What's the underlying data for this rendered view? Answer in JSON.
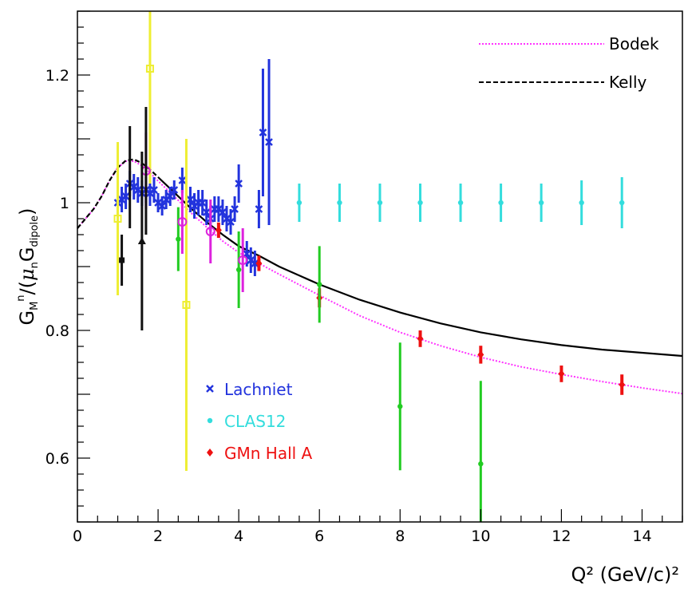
{
  "chart_data": {
    "type": "scatter",
    "title": "",
    "xlabel": "Q² (GeV/c)²",
    "ylabel": "G_M^n/(μ_n G_dipole)",
    "xlim": [
      0,
      15
    ],
    "ylim": [
      0.5,
      1.3
    ],
    "x_ticks": [
      "0",
      "2",
      "4",
      "6",
      "8",
      "10",
      "12",
      "14"
    ],
    "y_ticks": [
      "0.6",
      "0.8",
      "1",
      "1.2"
    ],
    "grid": false,
    "curves": [
      {
        "name": "Bodek",
        "legend_label": "Bodek",
        "color": "#ff33ff",
        "style": "dotted",
        "legend_location": "top-right",
        "points": [
          [
            0.0,
            0.96
          ],
          [
            0.2,
            0.975
          ],
          [
            0.4,
            0.99
          ],
          [
            0.6,
            1.01
          ],
          [
            0.8,
            1.035
          ],
          [
            1.0,
            1.055
          ],
          [
            1.2,
            1.065
          ],
          [
            1.4,
            1.065
          ],
          [
            1.6,
            1.058
          ],
          [
            1.8,
            1.047
          ],
          [
            2.0,
            1.034
          ],
          [
            2.4,
            1.01
          ],
          [
            2.8,
            0.985
          ],
          [
            3.2,
            0.962
          ],
          [
            3.6,
            0.94
          ],
          [
            4.0,
            0.922
          ],
          [
            4.5,
            0.905
          ],
          [
            5.0,
            0.888
          ],
          [
            6.0,
            0.855
          ],
          [
            7.0,
            0.823
          ],
          [
            8.0,
            0.797
          ],
          [
            9.0,
            0.776
          ],
          [
            10.0,
            0.758
          ],
          [
            11.0,
            0.743
          ],
          [
            12.0,
            0.731
          ],
          [
            13.0,
            0.72
          ],
          [
            14.0,
            0.71
          ],
          [
            15.0,
            0.701
          ]
        ]
      },
      {
        "name": "Kelly",
        "legend_label": "Kelly",
        "color": "#000000",
        "style": "dashed-then-solid",
        "legend_location": "top-right",
        "points": [
          [
            0.0,
            0.96
          ],
          [
            0.2,
            0.975
          ],
          [
            0.4,
            0.99
          ],
          [
            0.6,
            1.01
          ],
          [
            0.8,
            1.035
          ],
          [
            1.0,
            1.055
          ],
          [
            1.2,
            1.066
          ],
          [
            1.4,
            1.068
          ],
          [
            1.6,
            1.062
          ],
          [
            1.8,
            1.052
          ],
          [
            2.0,
            1.04
          ],
          [
            2.4,
            1.016
          ],
          [
            2.8,
            0.992
          ],
          [
            3.2,
            0.97
          ],
          [
            3.6,
            0.95
          ],
          [
            4.0,
            0.932
          ],
          [
            4.5,
            0.917
          ],
          [
            5.0,
            0.9
          ],
          [
            6.0,
            0.872
          ],
          [
            7.0,
            0.848
          ],
          [
            8.0,
            0.828
          ],
          [
            9.0,
            0.811
          ],
          [
            10.0,
            0.797
          ],
          [
            11.0,
            0.786
          ],
          [
            12.0,
            0.777
          ],
          [
            13.0,
            0.77
          ],
          [
            14.0,
            0.765
          ],
          [
            15.0,
            0.76
          ]
        ]
      }
    ],
    "series": [
      {
        "name": "Lachniet",
        "color": "#2233dd",
        "marker": "cross",
        "points": [
          [
            1.0,
            1.0,
            0.02
          ],
          [
            1.1,
            1.005,
            0.02
          ],
          [
            1.2,
            1.01,
            0.02
          ],
          [
            1.3,
            1.03,
            0.02
          ],
          [
            1.4,
            1.025,
            0.02
          ],
          [
            1.5,
            1.02,
            0.02
          ],
          [
            1.6,
            1.015,
            0.02
          ],
          [
            1.7,
            1.02,
            0.02
          ],
          [
            1.8,
            1.015,
            0.02
          ],
          [
            1.9,
            1.02,
            0.02
          ],
          [
            2.0,
            1.0,
            0.015
          ],
          [
            2.1,
            0.995,
            0.015
          ],
          [
            2.2,
            1.005,
            0.015
          ],
          [
            2.3,
            1.01,
            0.015
          ],
          [
            2.4,
            1.02,
            0.015
          ],
          [
            2.6,
            1.035,
            0.02
          ],
          [
            2.8,
            1.005,
            0.02
          ],
          [
            2.9,
            0.995,
            0.02
          ],
          [
            3.0,
            1.0,
            0.02
          ],
          [
            3.1,
            1.0,
            0.02
          ],
          [
            3.2,
            0.985,
            0.02
          ],
          [
            3.3,
            0.975,
            0.02
          ],
          [
            3.4,
            0.99,
            0.02
          ],
          [
            3.5,
            0.99,
            0.02
          ],
          [
            3.6,
            0.985,
            0.02
          ],
          [
            3.7,
            0.975,
            0.02
          ],
          [
            3.8,
            0.97,
            0.02
          ],
          [
            3.9,
            0.99,
            0.02
          ],
          [
            4.0,
            1.03,
            0.03
          ],
          [
            4.2,
            0.92,
            0.02
          ],
          [
            4.3,
            0.91,
            0.02
          ],
          [
            4.4,
            0.905,
            0.02
          ],
          [
            4.5,
            0.99,
            0.03
          ],
          [
            4.6,
            1.11,
            0.1
          ],
          [
            4.75,
            1.095,
            0.13
          ]
        ]
      },
      {
        "name": "CLAS12",
        "color": "#33dddd",
        "marker": "dot",
        "points": [
          [
            5.5,
            1.0,
            0.03
          ],
          [
            6.5,
            1.0,
            0.03
          ],
          [
            7.5,
            1.0,
            0.03
          ],
          [
            8.5,
            1.0,
            0.03
          ],
          [
            9.5,
            1.0,
            0.03
          ],
          [
            10.5,
            1.0,
            0.03
          ],
          [
            11.5,
            1.0,
            0.03
          ],
          [
            12.5,
            1.0,
            0.035
          ],
          [
            13.5,
            1.0,
            0.04
          ]
        ]
      },
      {
        "name": "GMn Hall A",
        "color": "#ee1111",
        "marker": "diamond",
        "points": [
          [
            3.5,
            0.957,
            0.012
          ],
          [
            4.5,
            0.905,
            0.012
          ],
          [
            6.0,
            0.851,
            0.015
          ],
          [
            8.5,
            0.787,
            0.013
          ],
          [
            10.0,
            0.762,
            0.014
          ],
          [
            12.0,
            0.732,
            0.013
          ],
          [
            13.5,
            0.715,
            0.016
          ]
        ]
      },
      {
        "name": "green",
        "color": "#22cc22",
        "marker": "dot",
        "points": [
          [
            2.5,
            0.943,
            0.05
          ],
          [
            4.0,
            0.895,
            0.06
          ],
          [
            6.0,
            0.872,
            0.06
          ],
          [
            8.0,
            0.681,
            0.1
          ],
          [
            10.0,
            0.591,
            0.13
          ]
        ]
      },
      {
        "name": "yellow",
        "color": "#eeee33",
        "marker": "square",
        "points": [
          [
            1.0,
            0.975,
            0.12
          ],
          [
            1.8,
            1.21,
            0.18
          ],
          [
            2.7,
            0.84,
            0.26
          ]
        ]
      },
      {
        "name": "magenta",
        "color": "#dd22dd",
        "marker": "circle",
        "points": [
          [
            1.7,
            1.05,
            0.06
          ],
          [
            2.6,
            0.97,
            0.05
          ],
          [
            3.3,
            0.955,
            0.05
          ],
          [
            4.1,
            0.91,
            0.05
          ]
        ]
      },
      {
        "name": "black",
        "color": "#111111",
        "marker": "mixed",
        "points": [
          [
            1.1,
            0.91,
            0.04
          ],
          [
            1.6,
            0.94,
            0.14
          ],
          [
            1.3,
            1.04,
            0.08
          ],
          [
            1.7,
            1.05,
            0.1
          ]
        ]
      }
    ],
    "legend": [
      {
        "label": "Lachniet",
        "color": "#2233dd",
        "marker": "cross"
      },
      {
        "label": "CLAS12",
        "color": "#33dddd",
        "marker": "dot"
      },
      {
        "label": "GMn Hall A",
        "color": "#ee1111",
        "marker": "diamond"
      }
    ]
  }
}
